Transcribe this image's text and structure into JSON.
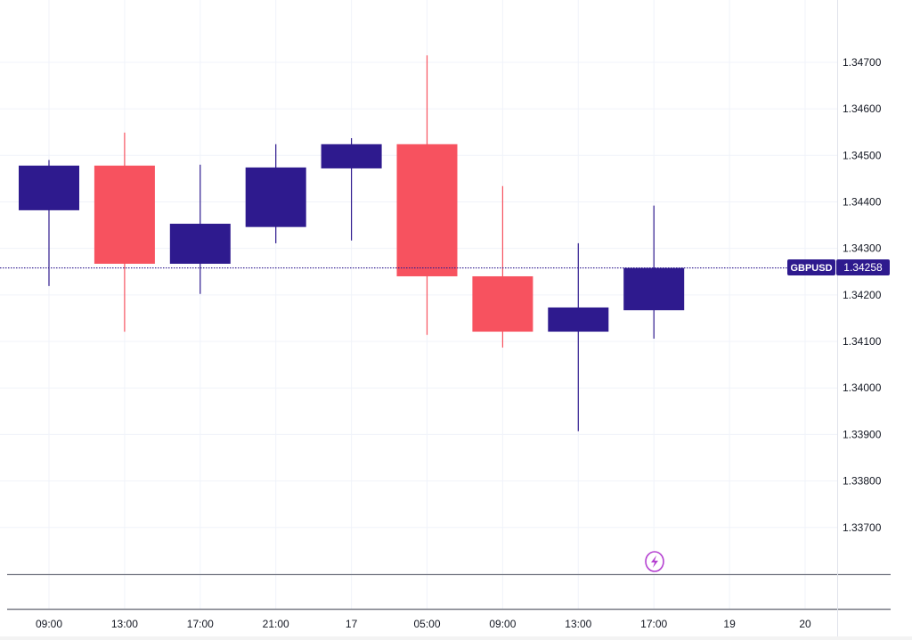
{
  "chart_data": {
    "type": "candlestick",
    "symbol": "GBPUSD",
    "last_price": "1.34258",
    "colors": {
      "up": "#2e1a8e",
      "down": "#f7525f",
      "price_line": "#2e1a8e",
      "event_icon": "#b43fd0",
      "grid": "#f0f3fa"
    },
    "x_labels": [
      "09:00",
      "13:00",
      "17:00",
      "21:00",
      "17",
      "05:00",
      "09:00",
      "13:00",
      "17:00",
      "19",
      "20"
    ],
    "y_ticks": [
      "1.34700",
      "1.34600",
      "1.34500",
      "1.34400",
      "1.34300",
      "1.34200",
      "1.34100",
      "1.34000",
      "1.33900",
      "1.33800",
      "1.33700"
    ],
    "ylim": [
      1.33598,
      1.34834
    ],
    "grid": true,
    "candles": [
      {
        "x": "09:00",
        "open": 1.34382,
        "high": 1.3449,
        "low": 1.34219,
        "close": 1.34478
      },
      {
        "x": "13:00",
        "open": 1.34478,
        "high": 1.34549,
        "low": 1.34121,
        "close": 1.34267
      },
      {
        "x": "17:00",
        "open": 1.34267,
        "high": 1.3448,
        "low": 1.34202,
        "close": 1.34353
      },
      {
        "x": "21:00",
        "open": 1.34346,
        "high": 1.34524,
        "low": 1.34311,
        "close": 1.34474
      },
      {
        "x": "17",
        "open": 1.34472,
        "high": 1.34537,
        "low": 1.34317,
        "close": 1.34524
      },
      {
        "x": "05:00",
        "open": 1.34524,
        "high": 1.34715,
        "low": 1.34114,
        "close": 1.3424
      },
      {
        "x": "09:00",
        "open": 1.3424,
        "high": 1.34434,
        "low": 1.34087,
        "close": 1.34121
      },
      {
        "x": "13:00",
        "open": 1.34121,
        "high": 1.34311,
        "low": 1.33907,
        "close": 1.34173
      },
      {
        "x": "17:00",
        "open": 1.34167,
        "high": 1.34392,
        "low": 1.34106,
        "close": 1.34258
      }
    ],
    "event_marker": {
      "x": "17:00",
      "icon": "lightning-bolt-icon"
    }
  }
}
